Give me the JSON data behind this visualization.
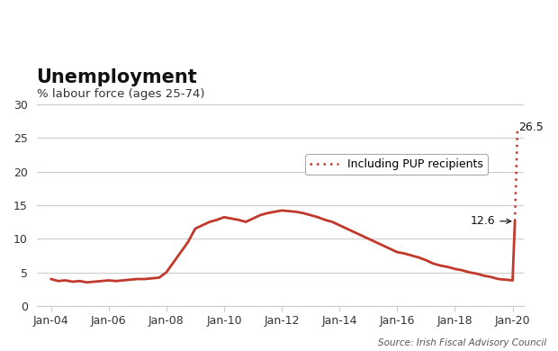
{
  "title": "Unemployment",
  "subtitle": "% labour force (ages 25-74)",
  "source": "Source: Irish Fiscal Advisory Council",
  "line_color": "#C0392B",
  "dotted_line_color": "#C0392B",
  "background_color": "#FFFFFF",
  "grid_color": "#CCCCCC",
  "ylim": [
    0,
    30
  ],
  "yticks": [
    0,
    5,
    10,
    15,
    20,
    25,
    30
  ],
  "annotation_12_6": "12.6",
  "annotation_26_5": "26.5",
  "legend_label": "Including PUP recipients",
  "x_tick_labels": [
    "Jan-04",
    "Jan-06",
    "Jan-08",
    "Jan-10",
    "Jan-12",
    "Jan-14",
    "Jan-16",
    "Jan-18",
    "Jan-20"
  ],
  "main_series": {
    "dates_approx": [
      2004.0,
      2004.25,
      2004.5,
      2004.75,
      2005.0,
      2005.25,
      2005.5,
      2005.75,
      2006.0,
      2006.25,
      2006.5,
      2006.75,
      2007.0,
      2007.25,
      2007.5,
      2007.75,
      2008.0,
      2008.25,
      2008.5,
      2008.75,
      2009.0,
      2009.25,
      2009.5,
      2009.75,
      2010.0,
      2010.25,
      2010.5,
      2010.75,
      2011.0,
      2011.25,
      2011.5,
      2011.75,
      2012.0,
      2012.25,
      2012.5,
      2012.75,
      2013.0,
      2013.25,
      2013.5,
      2013.75,
      2014.0,
      2014.25,
      2014.5,
      2014.75,
      2015.0,
      2015.25,
      2015.5,
      2015.75,
      2016.0,
      2016.25,
      2016.5,
      2016.75,
      2017.0,
      2017.25,
      2017.5,
      2017.75,
      2018.0,
      2018.25,
      2018.5,
      2018.75,
      2019.0,
      2019.25,
      2019.5,
      2019.75,
      2020.0,
      2020.08
    ],
    "values": [
      4.0,
      3.7,
      3.8,
      3.6,
      3.7,
      3.5,
      3.6,
      3.7,
      3.8,
      3.7,
      3.8,
      3.9,
      4.0,
      4.0,
      4.1,
      4.2,
      5.0,
      6.5,
      8.0,
      9.5,
      11.5,
      12.0,
      12.5,
      12.8,
      13.2,
      13.0,
      12.8,
      12.5,
      13.0,
      13.5,
      13.8,
      14.0,
      14.2,
      14.1,
      14.0,
      13.8,
      13.5,
      13.2,
      12.8,
      12.5,
      12.0,
      11.5,
      11.0,
      10.5,
      10.0,
      9.5,
      9.0,
      8.5,
      8.0,
      7.8,
      7.5,
      7.2,
      6.8,
      6.3,
      6.0,
      5.8,
      5.5,
      5.3,
      5.0,
      4.8,
      4.5,
      4.3,
      4.0,
      3.9,
      3.8,
      12.6
    ]
  },
  "pup_series": {
    "dates_approx": [
      2020.08,
      2020.17
    ],
    "values": [
      12.6,
      26.5
    ]
  }
}
